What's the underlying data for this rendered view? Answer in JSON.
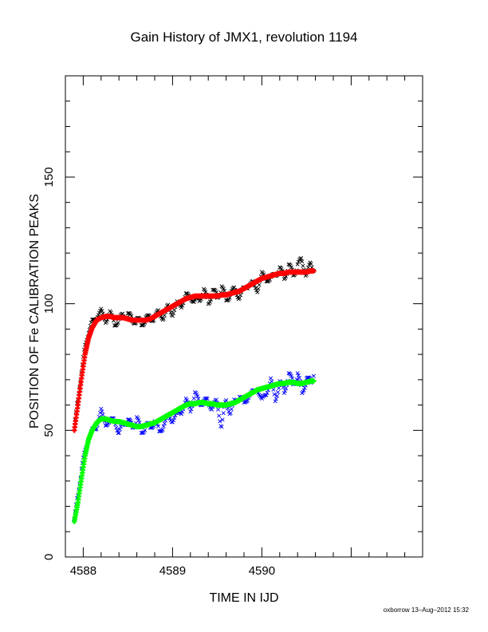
{
  "chart_data": {
    "type": "scatter",
    "title": "Gain History of JMX1, revolution 1194",
    "xlabel": "TIME IN IJD",
    "ylabel": "POSITION OF Fe CALIBRATION PEAKS",
    "xlim": [
      4587.8,
      4591.8
    ],
    "ylim": [
      0,
      190
    ],
    "x_ticks": [
      4588,
      4589,
      4590
    ],
    "y_ticks": [
      0,
      50,
      100,
      150
    ],
    "grid": false,
    "footer": "oxborrow 13–Aug–2012 15:32",
    "series": [
      {
        "role": "upper-peak-measurements",
        "marker": "x",
        "color": "#000000",
        "x": [
          4587.9,
          4587.94,
          4587.98,
          4588.02,
          4588.06,
          4588.1,
          4588.15,
          4588.2,
          4588.25,
          4588.3,
          4588.35,
          4588.4,
          4588.45,
          4588.5,
          4588.55,
          4588.6,
          4588.65,
          4588.7,
          4588.75,
          4588.8,
          4588.85,
          4588.9,
          4588.95,
          4589.0,
          4589.05,
          4589.1,
          4589.15,
          4589.2,
          4589.25,
          4589.3,
          4589.35,
          4589.4,
          4589.45,
          4589.5,
          4589.55,
          4589.6,
          4589.65,
          4589.7,
          4589.75,
          4589.8,
          4589.85,
          4589.9,
          4589.95,
          4590.0,
          4590.05,
          4590.1,
          4590.15,
          4590.2,
          4590.25,
          4590.3,
          4590.35,
          4590.4,
          4590.45,
          4590.5,
          4590.55,
          4590.58
        ],
        "y": [
          50.5,
          62.0,
          73.5,
          83.0,
          89.5,
          92.5,
          95.5,
          96.5,
          94.0,
          95.5,
          93.0,
          92.5,
          96.5,
          95.0,
          94.0,
          93.5,
          92.0,
          94.5,
          93.5,
          95.5,
          96.0,
          95.0,
          98.5,
          96.5,
          99.5,
          100.0,
          102.5,
          103.5,
          100.0,
          102.5,
          104.5,
          101.0,
          104.5,
          103.0,
          106.5,
          101.5,
          104.5,
          105.0,
          103.0,
          105.5,
          108.0,
          107.5,
          106.0,
          111.0,
          110.5,
          109.0,
          112.5,
          113.0,
          111.0,
          114.5,
          112.0,
          115.0,
          117.0,
          111.5,
          115.5,
          113.5
        ]
      },
      {
        "role": "upper-peak-fit",
        "marker": "+",
        "color": "#ff0000",
        "x": [
          4587.9,
          4587.94,
          4587.98,
          4588.02,
          4588.06,
          4588.1,
          4588.15,
          4588.2,
          4588.25,
          4588.3,
          4588.35,
          4588.4,
          4588.45,
          4588.5,
          4588.55,
          4588.6,
          4588.65,
          4588.7,
          4588.75,
          4588.8,
          4588.85,
          4588.9,
          4588.95,
          4589.0,
          4589.05,
          4589.1,
          4589.15,
          4589.2,
          4589.25,
          4589.3,
          4589.35,
          4589.4,
          4589.45,
          4589.5,
          4589.55,
          4589.6,
          4589.65,
          4589.7,
          4589.75,
          4589.8,
          4589.85,
          4589.9,
          4589.95,
          4590.0,
          4590.05,
          4590.1,
          4590.15,
          4590.2,
          4590.25,
          4590.3,
          4590.35,
          4590.4,
          4590.45,
          4590.5,
          4590.55,
          4590.58
        ],
        "y": [
          50.0,
          60.0,
          70.5,
          80.0,
          86.5,
          90.5,
          93.5,
          94.5,
          95.0,
          95.0,
          94.5,
          94.5,
          94.5,
          94.0,
          93.5,
          93.5,
          93.5,
          93.5,
          94.0,
          95.0,
          96.0,
          97.0,
          98.0,
          99.0,
          100.0,
          101.0,
          102.0,
          102.5,
          103.0,
          103.0,
          103.0,
          103.0,
          103.0,
          103.0,
          103.5,
          103.5,
          104.0,
          104.5,
          105.0,
          106.0,
          107.0,
          108.0,
          109.0,
          110.0,
          110.5,
          111.0,
          111.5,
          112.0,
          112.0,
          112.5,
          112.5,
          112.5,
          112.5,
          112.5,
          113.0,
          113.0
        ]
      },
      {
        "role": "lower-peak-measurements",
        "marker": "x",
        "color": "#0000ff",
        "x": [
          4587.9,
          4587.94,
          4587.98,
          4588.02,
          4588.06,
          4588.1,
          4588.15,
          4588.2,
          4588.25,
          4588.3,
          4588.35,
          4588.4,
          4588.45,
          4588.5,
          4588.55,
          4588.6,
          4588.65,
          4588.7,
          4588.75,
          4588.8,
          4588.85,
          4588.9,
          4588.95,
          4589.0,
          4589.05,
          4589.1,
          4589.15,
          4589.2,
          4589.25,
          4589.3,
          4589.35,
          4589.4,
          4589.45,
          4589.5,
          4589.55,
          4589.6,
          4589.65,
          4589.7,
          4589.75,
          4589.8,
          4589.85,
          4589.9,
          4589.95,
          4590.0,
          4590.05,
          4590.1,
          4590.15,
          4590.2,
          4590.25,
          4590.3,
          4590.35,
          4590.4,
          4590.45,
          4590.5,
          4590.55,
          4590.58
        ],
        "y": [
          15.0,
          24.0,
          35.5,
          41.5,
          47.0,
          49.5,
          52.0,
          57.0,
          53.5,
          52.5,
          55.5,
          47.5,
          54.0,
          53.0,
          52.0,
          54.5,
          49.5,
          52.0,
          51.0,
          54.0,
          49.0,
          52.5,
          55.0,
          54.5,
          56.0,
          58.0,
          61.0,
          59.0,
          63.5,
          62.0,
          60.5,
          62.0,
          58.5,
          61.5,
          51.0,
          62.0,
          57.0,
          61.5,
          64.0,
          60.0,
          64.0,
          64.5,
          67.0,
          61.0,
          65.5,
          69.0,
          63.0,
          68.0,
          66.0,
          71.5,
          69.0,
          72.0,
          65.0,
          70.5,
          68.5,
          72.0
        ]
      },
      {
        "role": "lower-peak-fit",
        "marker": "+",
        "color": "#00ff00",
        "x": [
          4587.9,
          4587.94,
          4587.98,
          4588.02,
          4588.06,
          4588.1,
          4588.15,
          4588.2,
          4588.25,
          4588.3,
          4588.35,
          4588.4,
          4588.45,
          4588.5,
          4588.55,
          4588.6,
          4588.65,
          4588.7,
          4588.75,
          4588.8,
          4588.85,
          4588.9,
          4588.95,
          4589.0,
          4589.05,
          4589.1,
          4589.15,
          4589.2,
          4589.25,
          4589.3,
          4589.35,
          4589.4,
          4589.45,
          4589.5,
          4589.55,
          4589.6,
          4589.65,
          4589.7,
          4589.75,
          4589.8,
          4589.85,
          4589.9,
          4589.95,
          4590.0,
          4590.05,
          4590.1,
          4590.15,
          4590.2,
          4590.25,
          4590.3,
          4590.35,
          4590.4,
          4590.45,
          4590.5,
          4590.55,
          4590.58
        ],
        "y": [
          14.0,
          21.5,
          31.0,
          40.0,
          46.5,
          50.0,
          53.0,
          54.5,
          54.5,
          54.0,
          53.5,
          53.5,
          53.0,
          52.5,
          52.0,
          51.5,
          51.5,
          52.0,
          52.5,
          53.0,
          54.0,
          55.0,
          56.0,
          57.0,
          58.0,
          59.0,
          60.0,
          60.5,
          60.5,
          61.0,
          61.0,
          60.5,
          60.5,
          60.0,
          60.0,
          60.0,
          60.5,
          61.0,
          62.0,
          63.0,
          64.0,
          65.0,
          66.0,
          66.5,
          67.0,
          67.5,
          68.0,
          68.5,
          68.5,
          69.0,
          69.0,
          68.5,
          68.5,
          69.0,
          69.5,
          69.5
        ]
      }
    ]
  }
}
